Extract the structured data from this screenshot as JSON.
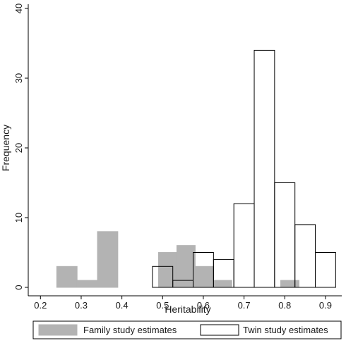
{
  "chart_data": {
    "type": "histogram",
    "xlabel": "Heritability",
    "ylabel": "Frequency",
    "xlim": [
      0.17,
      0.94
    ],
    "ylim": [
      0,
      40
    ],
    "xticks": [
      "0.2",
      "0.3",
      "0.4",
      "0.5",
      "0.6",
      "0.7",
      "0.8",
      "0.9"
    ],
    "yticks": [
      "0",
      "10",
      "20",
      "30",
      "40"
    ],
    "grid": false,
    "legend_position": "bottom",
    "series": [
      {
        "name": "Family study estimates",
        "color": "#b3b3b3",
        "style": "filled",
        "bins": [
          {
            "x0": 0.24,
            "x1": 0.29,
            "count": 3
          },
          {
            "x0": 0.29,
            "x1": 0.34,
            "count": 1
          },
          {
            "x0": 0.34,
            "x1": 0.39,
            "count": 8
          },
          {
            "x0": 0.49,
            "x1": 0.535,
            "count": 5
          },
          {
            "x0": 0.535,
            "x1": 0.58,
            "count": 6
          },
          {
            "x0": 0.58,
            "x1": 0.625,
            "count": 3
          },
          {
            "x0": 0.625,
            "x1": 0.67,
            "count": 1
          },
          {
            "x0": 0.79,
            "x1": 0.835,
            "count": 1
          }
        ]
      },
      {
        "name": "Twin study estimates",
        "color": "#ffffff",
        "style": "outline",
        "bins": [
          {
            "x0": 0.475,
            "x1": 0.525,
            "count": 3
          },
          {
            "x0": 0.525,
            "x1": 0.575,
            "count": 1
          },
          {
            "x0": 0.575,
            "x1": 0.625,
            "count": 5
          },
          {
            "x0": 0.625,
            "x1": 0.675,
            "count": 4
          },
          {
            "x0": 0.675,
            "x1": 0.725,
            "count": 12
          },
          {
            "x0": 0.725,
            "x1": 0.775,
            "count": 34
          },
          {
            "x0": 0.775,
            "x1": 0.825,
            "count": 15
          },
          {
            "x0": 0.825,
            "x1": 0.875,
            "count": 9
          },
          {
            "x0": 0.875,
            "x1": 0.925,
            "count": 5
          }
        ]
      }
    ]
  }
}
